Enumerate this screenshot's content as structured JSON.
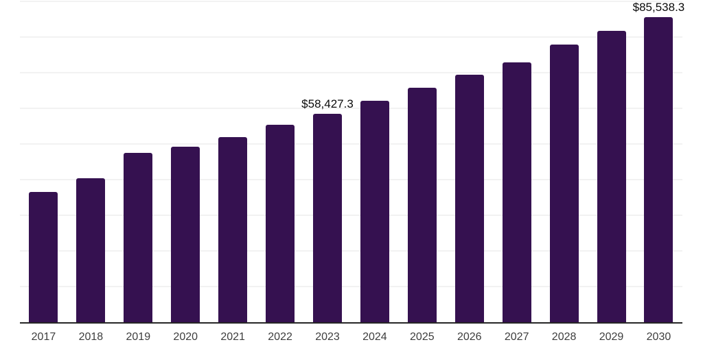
{
  "page": {
    "background_color": "#ffffff"
  },
  "chart_data": {
    "type": "bar",
    "title": "",
    "xlabel": "",
    "ylabel": "",
    "categories": [
      "2017",
      "2018",
      "2019",
      "2020",
      "2021",
      "2022",
      "2023",
      "2024",
      "2025",
      "2026",
      "2027",
      "2028",
      "2029",
      "2030"
    ],
    "values": [
      36600,
      40300,
      47500,
      49300,
      51900,
      55300,
      58427.3,
      62100,
      65700,
      69400,
      72900,
      77900,
      81700,
      85538.3
    ],
    "data_labels": [
      {
        "category": "2023",
        "text": "$58,427.3"
      },
      {
        "category": "2030",
        "text": "$85,538.3"
      }
    ],
    "ylim": [
      0,
      90000
    ],
    "grid_interval": 10000,
    "grid": true,
    "legend": false,
    "y_tick_labels_shown": false,
    "bar_color": "#351150",
    "axis_color": "#262626",
    "grid_color": "#f2f2f2",
    "tick_label_color": "#3d3d3d",
    "data_label_color": "#0a0a0a"
  }
}
